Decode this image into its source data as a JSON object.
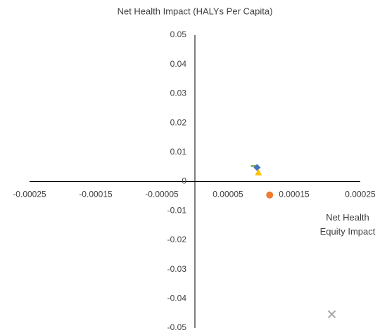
{
  "chart_data": {
    "type": "scatter",
    "title": "Net Health Impact (HALYs Per Capita)",
    "x_label": "Net Health Equity Impact",
    "xlim": [
      -0.00025,
      0.00025
    ],
    "xticks": [
      -0.00025,
      -0.00015,
      -5e-05,
      5e-05,
      0.00015,
      0.00025
    ],
    "ylim": [
      -0.05,
      0.05
    ],
    "yticks": [
      0.05,
      0.04,
      0.03,
      0.02,
      0.01,
      0,
      -0.01,
      -0.02,
      -0.03,
      -0.04,
      -0.05
    ],
    "series": [
      {
        "color": "#70ad47",
        "marker": "dash",
        "x": [
          9e-05
        ],
        "values": [
          0.0053
        ]
      },
      {
        "color": "#4472c4",
        "marker": "diamond",
        "x": [
          9.4e-05
        ],
        "values": [
          0.0048
        ]
      },
      {
        "color": "#ffc000",
        "marker": "triangle",
        "x": [
          9.6e-05
        ],
        "values": [
          0.0031
        ]
      },
      {
        "color": "#ed7d31",
        "marker": "circle",
        "x": [
          0.000113
        ],
        "values": [
          -0.0046
        ]
      },
      {
        "color": "#a5a5a5",
        "marker": "cross",
        "x": [
          0.000207
        ],
        "values": [
          -0.0453
        ]
      }
    ]
  }
}
